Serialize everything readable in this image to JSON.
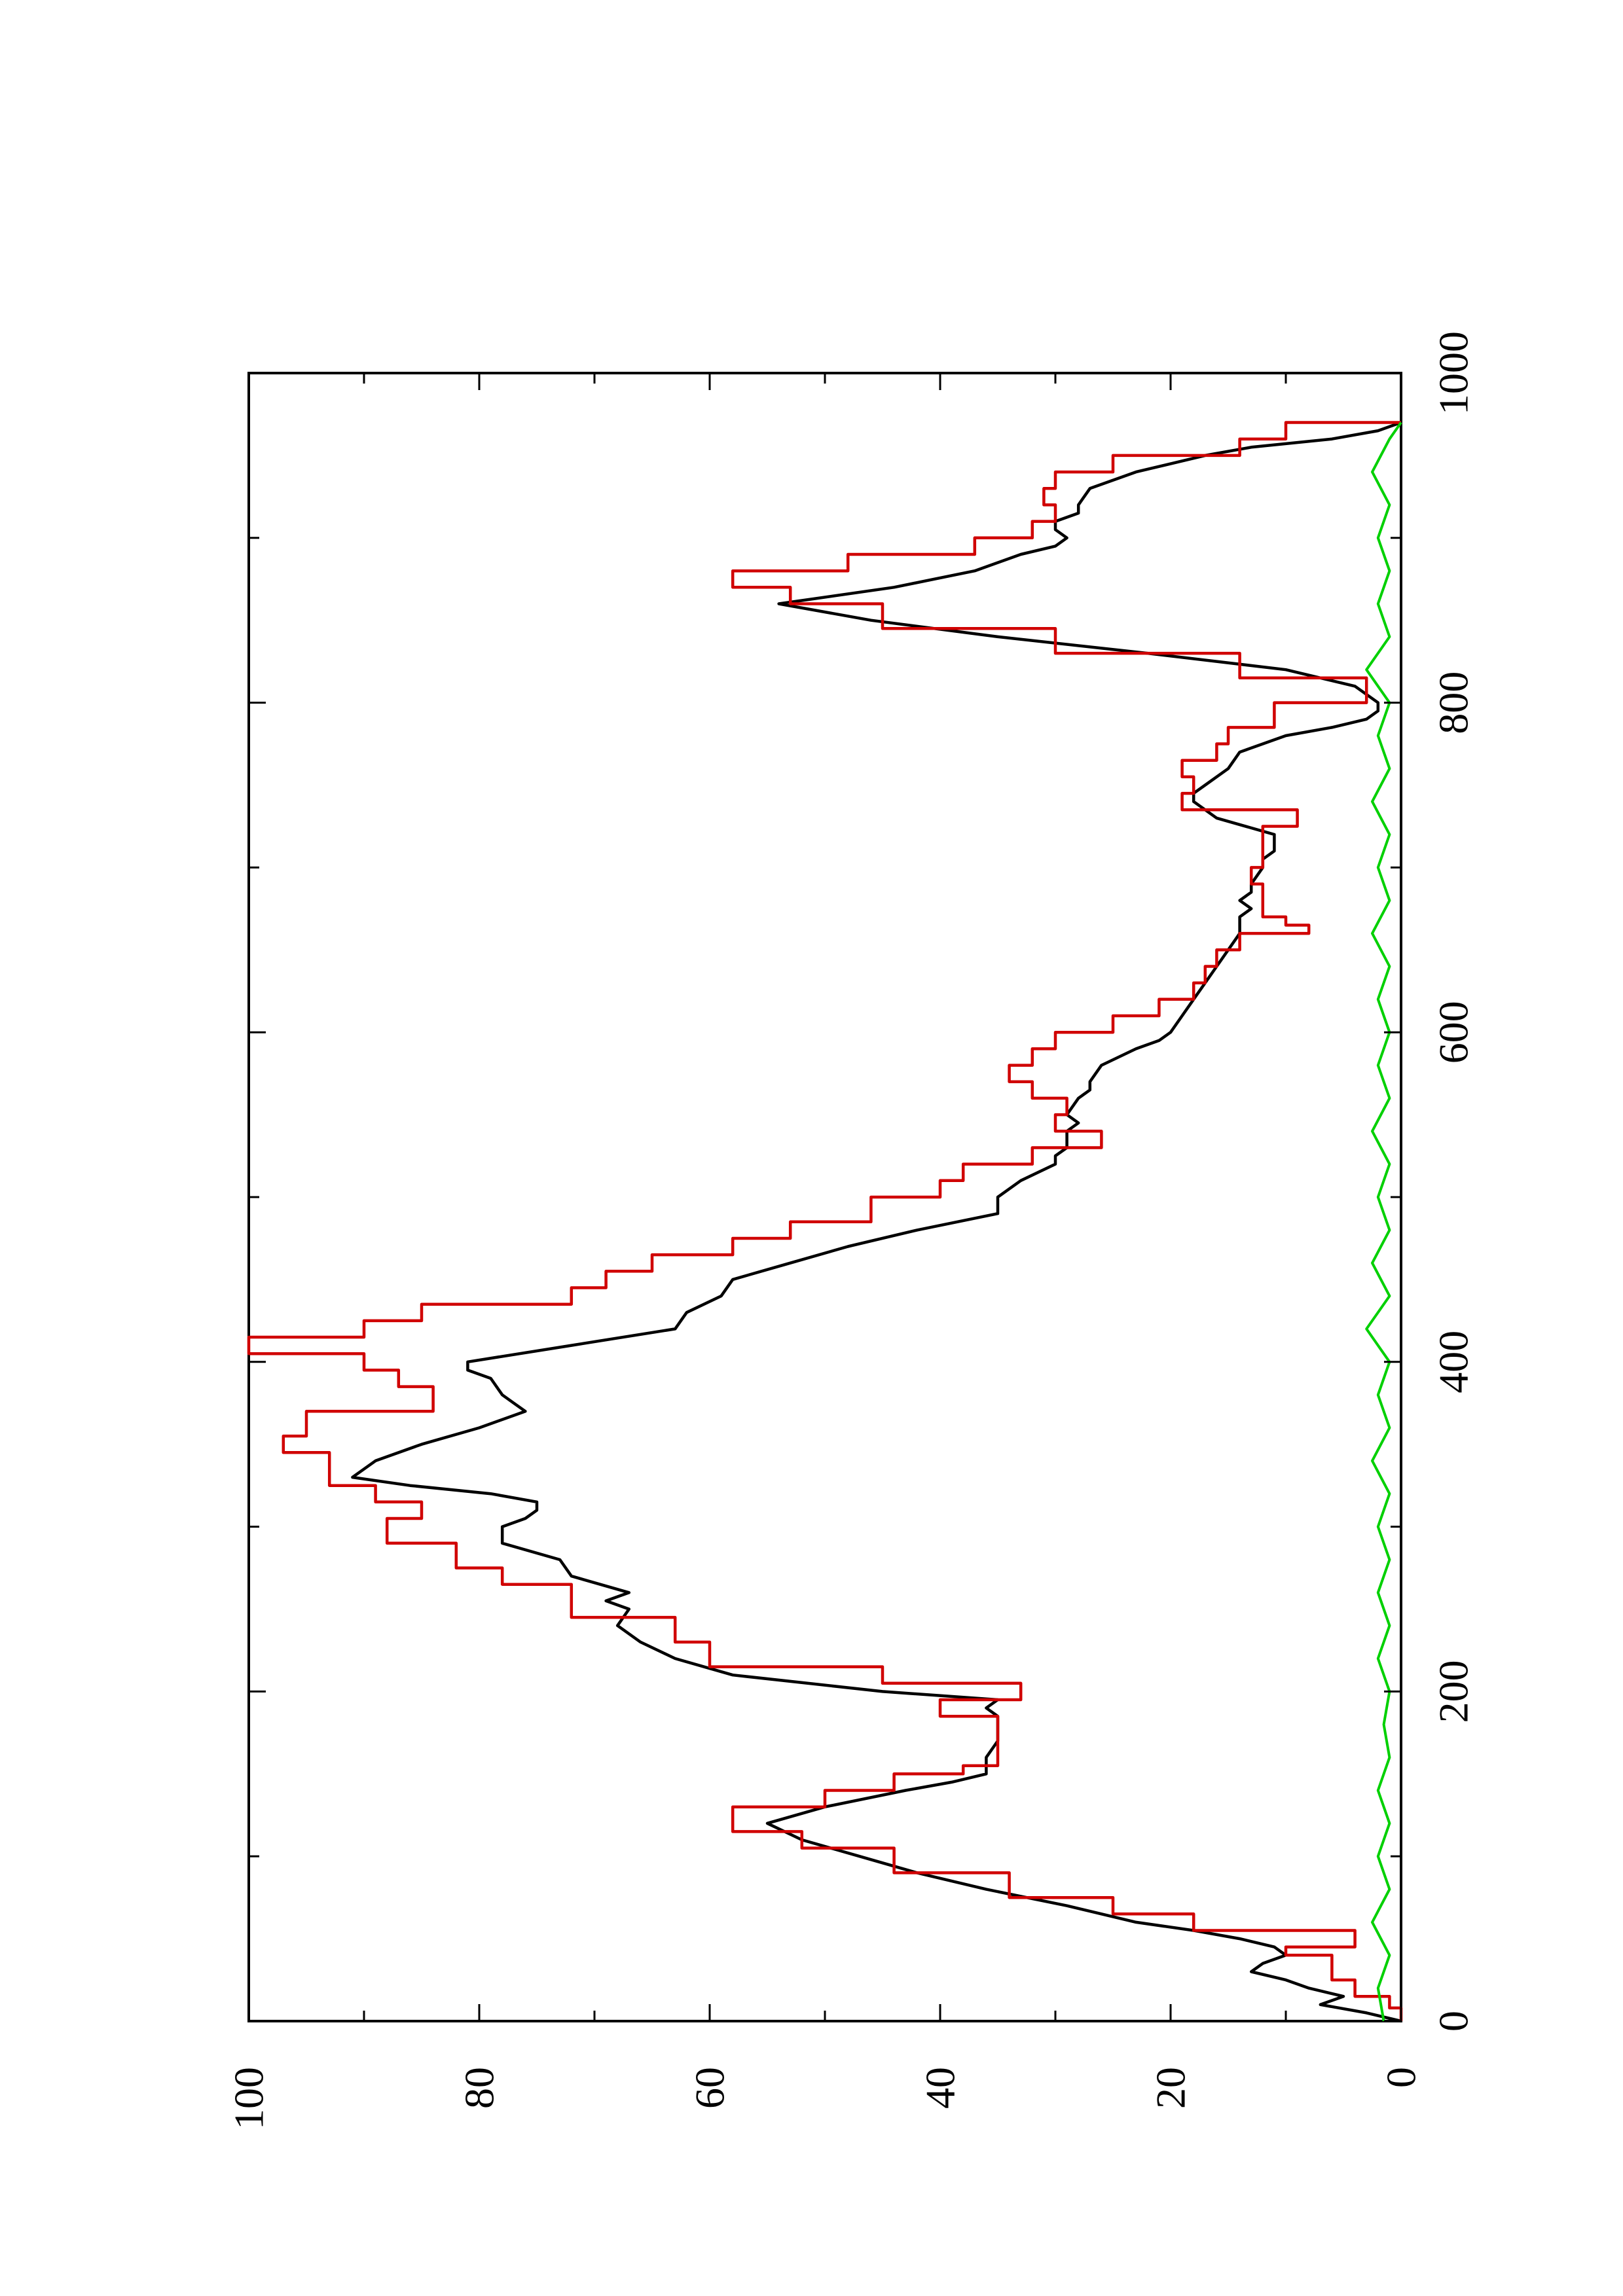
{
  "chart_data": {
    "type": "line",
    "orientation": "rotated 90 degrees counter-clockwise",
    "title": "",
    "xlabel": "",
    "ylabel": "",
    "xlim": [
      0,
      1000
    ],
    "ylim": [
      0,
      100
    ],
    "x_ticks": [
      0,
      200,
      400,
      600,
      800,
      1000
    ],
    "x_tick_labels": [
      "0",
      "200",
      "400",
      "600",
      "800",
      "1000"
    ],
    "x_minor_ticks": [
      100,
      300,
      500,
      700,
      900
    ],
    "y_ticks": [
      0,
      20,
      40,
      60,
      80,
      100
    ],
    "y_tick_labels": [
      "0",
      "20",
      "40",
      "60",
      "80",
      "100"
    ],
    "y_minor_ticks": [
      10,
      30,
      50,
      70,
      90
    ],
    "grid": false,
    "legend": "none",
    "series": [
      {
        "color": "#000000",
        "style": "smooth",
        "x": [
          0,
          5,
          10,
          15,
          20,
          25,
          30,
          35,
          40,
          45,
          50,
          55,
          60,
          70,
          80,
          90,
          100,
          110,
          120,
          130,
          140,
          145,
          150,
          160,
          170,
          180,
          185,
          190,
          195,
          200,
          210,
          220,
          230,
          240,
          250,
          255,
          260,
          270,
          280,
          290,
          300,
          305,
          310,
          315,
          320,
          325,
          330,
          340,
          350,
          360,
          370,
          375,
          380,
          390,
          395,
          400,
          410,
          420,
          430,
          440,
          450,
          460,
          470,
          480,
          490,
          495,
          500,
          510,
          520,
          525,
          530,
          535,
          540,
          545,
          550,
          560,
          565,
          570,
          580,
          590,
          595,
          600,
          610,
          620,
          630,
          640,
          650,
          660,
          665,
          670,
          675,
          680,
          685,
          690,
          700,
          705,
          710,
          720,
          730,
          740,
          745,
          750,
          760,
          770,
          780,
          785,
          790,
          795,
          800,
          810,
          820,
          830,
          840,
          850,
          860,
          870,
          880,
          890,
          895,
          900,
          905,
          910,
          915,
          920,
          930,
          940,
          950,
          955,
          960,
          965,
          970
        ],
        "y": [
          0,
          3,
          7,
          5,
          8,
          10,
          13,
          12,
          10,
          11,
          14,
          18,
          23,
          29,
          36,
          42,
          47,
          52,
          55,
          50,
          43,
          39,
          36,
          36,
          35,
          35,
          35,
          36,
          35,
          45,
          58,
          63,
          66,
          68,
          67,
          69,
          67,
          72,
          73,
          78,
          78,
          76,
          75,
          75,
          79,
          86,
          91,
          89,
          85,
          80,
          76,
          77,
          78,
          79,
          81,
          81,
          72,
          63,
          62,
          59,
          58,
          53,
          48,
          42,
          35,
          35,
          35,
          33,
          30,
          30,
          29,
          29,
          29,
          28,
          29,
          28,
          27,
          27,
          26,
          23,
          21,
          20,
          19,
          18,
          17,
          16,
          15,
          14,
          14,
          14,
          13,
          14,
          13,
          13,
          12,
          12,
          11,
          11,
          16,
          18,
          18,
          17,
          15,
          14,
          10,
          6,
          3,
          2,
          2,
          4,
          10,
          22,
          35,
          46,
          54,
          44,
          37,
          33,
          30,
          29,
          30,
          30,
          28,
          28,
          27,
          23,
          17,
          13,
          6,
          2,
          0
        ]
      },
      {
        "color": "#d00000",
        "style": "step",
        "x": [
          0,
          8,
          15,
          25,
          40,
          45,
          55,
          65,
          75,
          90,
          105,
          115,
          130,
          140,
          150,
          155,
          175,
          185,
          195,
          205,
          215,
          230,
          245,
          265,
          275,
          290,
          305,
          315,
          325,
          345,
          355,
          370,
          385,
          395,
          405,
          415,
          425,
          435,
          445,
          455,
          465,
          475,
          485,
          500,
          510,
          520,
          530,
          540,
          550,
          560,
          570,
          580,
          590,
          600,
          610,
          620,
          630,
          640,
          650,
          655,
          660,
          665,
          670,
          680,
          690,
          700,
          715,
          725,
          735,
          745,
          755,
          765,
          775,
          785,
          800,
          815,
          830,
          845,
          860,
          870,
          880,
          890,
          900,
          910,
          920,
          930,
          940,
          950,
          960,
          970
        ],
        "y": [
          0,
          1,
          4,
          6,
          10,
          4,
          18,
          25,
          34,
          44,
          52,
          58,
          50,
          44,
          38,
          35,
          35,
          40,
          33,
          45,
          60,
          63,
          72,
          78,
          82,
          88,
          85,
          89,
          93,
          97,
          95,
          84,
          87,
          90,
          100,
          90,
          85,
          72,
          69,
          65,
          58,
          53,
          46,
          40,
          38,
          32,
          26,
          30,
          29,
          32,
          34,
          32,
          30,
          25,
          21,
          18,
          17,
          16,
          14,
          14,
          8,
          10,
          12,
          12,
          13,
          12,
          12,
          9,
          19,
          18,
          19,
          16,
          15,
          11,
          3,
          14,
          30,
          45,
          53,
          58,
          48,
          37,
          32,
          30,
          31,
          30,
          25,
          14,
          10,
          0
        ]
      },
      {
        "color": "#00d000",
        "style": "noise",
        "x": [
          0,
          20,
          40,
          60,
          80,
          100,
          120,
          140,
          160,
          180,
          200,
          220,
          240,
          260,
          280,
          300,
          320,
          340,
          360,
          380,
          400,
          420,
          440,
          460,
          480,
          500,
          520,
          540,
          560,
          580,
          600,
          620,
          640,
          660,
          680,
          700,
          720,
          740,
          760,
          780,
          800,
          820,
          840,
          860,
          880,
          900,
          920,
          940,
          960,
          970
        ],
        "y": [
          1.5,
          2,
          1,
          2.5,
          1,
          2,
          1,
          2,
          1,
          1.5,
          1,
          2,
          1,
          2,
          1,
          2,
          1,
          2.5,
          1,
          2,
          1,
          3,
          1,
          2.5,
          1,
          2,
          1,
          2.5,
          1,
          2,
          1,
          2,
          1,
          2.5,
          1,
          2,
          1,
          2.5,
          1,
          2,
          1,
          3,
          1,
          2,
          1,
          2,
          1,
          2.5,
          1,
          0
        ]
      }
    ]
  }
}
